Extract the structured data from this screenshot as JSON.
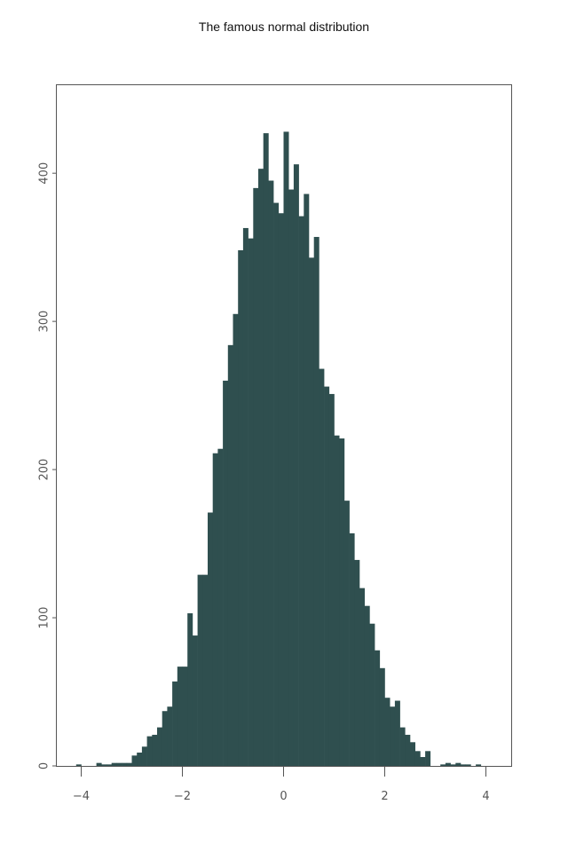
{
  "chart_data": {
    "type": "bar",
    "title": "The famous normal distribution",
    "xlabel": "",
    "ylabel": "",
    "bin_width": 0.1,
    "bins_start": [
      -4.1,
      -4.0,
      -3.9,
      -3.8,
      -3.7,
      -3.6,
      -3.5,
      -3.4,
      -3.3,
      -3.2,
      -3.1,
      -3.0,
      -2.9,
      -2.8,
      -2.7,
      -2.6,
      -2.5,
      -2.4,
      -2.3,
      -2.2,
      -2.1,
      -2.0,
      -1.9,
      -1.8,
      -1.7,
      -1.6,
      -1.5,
      -1.4,
      -1.3,
      -1.2,
      -1.1,
      -1.0,
      -0.9,
      -0.8,
      -0.7,
      -0.6,
      -0.5,
      -0.4,
      -0.3,
      -0.2,
      -0.1,
      0.0,
      0.1,
      0.2,
      0.3,
      0.4,
      0.5,
      0.6,
      0.7,
      0.8,
      0.9,
      1.0,
      1.1,
      1.2,
      1.3,
      1.4,
      1.5,
      1.6,
      1.7,
      1.8,
      1.9,
      2.0,
      2.1,
      2.2,
      2.3,
      2.4,
      2.5,
      2.6,
      2.7,
      2.8,
      2.9,
      3.0,
      3.1,
      3.2,
      3.3,
      3.4,
      3.5,
      3.6,
      3.7,
      3.8
    ],
    "values": [
      1,
      0,
      0,
      0,
      2,
      1,
      1,
      2,
      2,
      2,
      2,
      7,
      9,
      13,
      20,
      21,
      26,
      37,
      40,
      57,
      67,
      67,
      103,
      88,
      129,
      129,
      171,
      211,
      214,
      260,
      284,
      305,
      348,
      363,
      356,
      390,
      403,
      427,
      395,
      380,
      373,
      428,
      389,
      406,
      371,
      386,
      343,
      357,
      268,
      256,
      251,
      223,
      221,
      179,
      157,
      139,
      120,
      108,
      96,
      78,
      66,
      46,
      40,
      44,
      26,
      21,
      16,
      10,
      6,
      10,
      0,
      0,
      1,
      2,
      1,
      2,
      1,
      1,
      0,
      1
    ],
    "xlim": [
      -4.5,
      4.5
    ],
    "ylim": [
      0,
      460
    ],
    "x_ticks": [
      -4,
      -2,
      0,
      2,
      4
    ],
    "x_tick_labels": [
      "−4",
      "−2",
      "0",
      "2",
      "4"
    ],
    "y_ticks": [
      0,
      100,
      200,
      300,
      400
    ],
    "y_tick_labels": [
      "0",
      "100",
      "200",
      "300",
      "400"
    ],
    "bar_color": "#2f4f4f",
    "grid": false,
    "legend": "none"
  }
}
